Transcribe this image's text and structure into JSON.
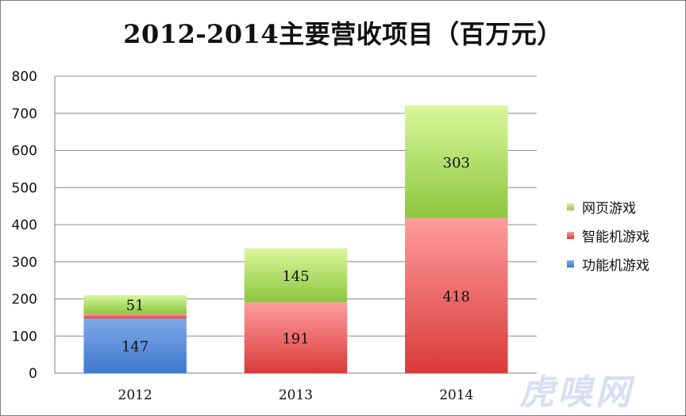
{
  "chart_data": {
    "type": "bar",
    "stacked": true,
    "title": "2012-2014主要营收项目（百万元）",
    "categories": [
      "2012",
      "2013",
      "2014"
    ],
    "series": [
      {
        "name": "功能机游戏",
        "values": [
          147,
          0,
          0
        ],
        "labels": [
          "147",
          "",
          ""
        ],
        "color_top": "#7ea9e6",
        "color_bottom": "#3f78cf"
      },
      {
        "name": "智能机游戏",
        "values": [
          12,
          191,
          418
        ],
        "labels": [
          "",
          "191",
          "418"
        ],
        "color_top": "#ff9c9c",
        "color_bottom": "#d93a3a"
      },
      {
        "name": "网页游戏",
        "values": [
          51,
          145,
          303
        ],
        "labels": [
          "51",
          "145",
          "303"
        ],
        "color_top": "#d9f79c",
        "color_bottom": "#8cc63e"
      }
    ],
    "ylim": [
      0,
      800
    ],
    "yticks": [
      0,
      100,
      200,
      300,
      400,
      500,
      600,
      700,
      800
    ],
    "grid": true,
    "legend_position": "right",
    "legend_order": [
      "网页游戏",
      "智能机游戏",
      "功能机游戏"
    ]
  },
  "watermark": "虎嗅网"
}
